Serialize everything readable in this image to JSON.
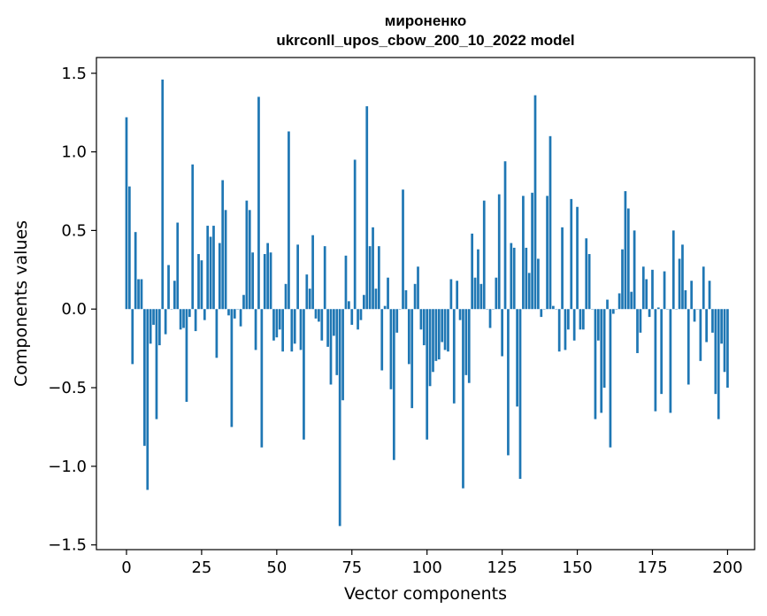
{
  "chart_data": {
    "type": "bar",
    "title": "мироненко",
    "subtitle": "ukrconll_upos_cbow_200_10_2022 model",
    "xlabel": "Vector components",
    "ylabel": "Components values",
    "xlim": [
      -10,
      209
    ],
    "ylim": [
      -1.53,
      1.6
    ],
    "xticks": [
      0,
      25,
      50,
      75,
      100,
      125,
      150,
      175,
      200
    ],
    "xtick_labels": [
      "0",
      "25",
      "50",
      "75",
      "100",
      "125",
      "150",
      "175",
      "200"
    ],
    "yticks": [
      -1.5,
      -1.0,
      -0.5,
      0.0,
      0.5,
      1.0,
      1.5
    ],
    "ytick_labels": [
      "−1.5",
      "−1.0",
      "−0.5",
      "0.0",
      "0.5",
      "1.0",
      "1.5"
    ],
    "bar_color": "#1f77b4",
    "grid": false,
    "values": [
      1.22,
      0.78,
      -0.35,
      0.49,
      0.19,
      0.19,
      -0.87,
      -1.15,
      -0.22,
      -0.1,
      -0.7,
      -0.23,
      1.46,
      -0.16,
      0.28,
      0.0,
      0.18,
      0.55,
      -0.13,
      -0.12,
      -0.59,
      -0.05,
      0.92,
      -0.14,
      0.35,
      0.31,
      -0.07,
      0.53,
      0.46,
      0.53,
      -0.31,
      0.42,
      0.82,
      0.63,
      -0.04,
      -0.75,
      -0.06,
      0.0,
      -0.11,
      0.09,
      0.69,
      0.63,
      0.36,
      -0.26,
      1.35,
      -0.88,
      0.35,
      0.42,
      0.36,
      -0.2,
      -0.18,
      -0.13,
      -0.27,
      0.16,
      1.13,
      -0.27,
      -0.22,
      0.41,
      -0.26,
      -0.83,
      0.22,
      0.13,
      0.47,
      -0.06,
      -0.08,
      -0.2,
      0.4,
      -0.24,
      -0.48,
      -0.17,
      -0.42,
      -1.38,
      -0.58,
      0.34,
      0.05,
      -0.1,
      0.95,
      -0.13,
      -0.07,
      0.09,
      1.29,
      0.4,
      0.52,
      0.13,
      0.4,
      -0.39,
      0.02,
      0.2,
      -0.51,
      -0.96,
      -0.15,
      0.0,
      0.76,
      0.12,
      -0.35,
      -0.63,
      0.16,
      0.27,
      -0.13,
      -0.23,
      -0.83,
      -0.49,
      -0.4,
      -0.33,
      -0.32,
      -0.21,
      -0.26,
      -0.27,
      0.19,
      -0.6,
      0.18,
      -0.07,
      -1.14,
      -0.42,
      -0.47,
      0.48,
      0.2,
      0.38,
      0.16,
      0.69,
      0.0,
      -0.12,
      0.0,
      0.2,
      0.73,
      -0.3,
      0.94,
      -0.93,
      0.42,
      0.39,
      -0.62,
      -1.08,
      0.72,
      0.39,
      0.23,
      0.74,
      1.36,
      0.32,
      -0.05,
      0.0,
      0.72,
      1.1,
      0.02,
      0.0,
      -0.27,
      0.52,
      -0.26,
      -0.13,
      0.7,
      -0.2,
      0.65,
      -0.13,
      -0.13,
      0.45,
      0.35,
      0.0,
      -0.7,
      -0.2,
      -0.66,
      -0.5,
      0.06,
      -0.88,
      -0.03,
      0.0,
      0.1,
      0.38,
      0.75,
      0.64,
      0.11,
      0.5,
      -0.28,
      -0.15,
      0.27,
      0.19,
      -0.05,
      0.25,
      -0.65,
      0.01,
      -0.54,
      0.24,
      0.0,
      -0.66,
      0.5,
      0.0,
      0.32,
      0.41,
      0.12,
      -0.48,
      0.18,
      -0.08,
      0.0,
      -0.33,
      0.27,
      -0.21,
      0.18,
      -0.15,
      -0.54,
      -0.7,
      -0.22,
      -0.4,
      -0.5
    ]
  }
}
